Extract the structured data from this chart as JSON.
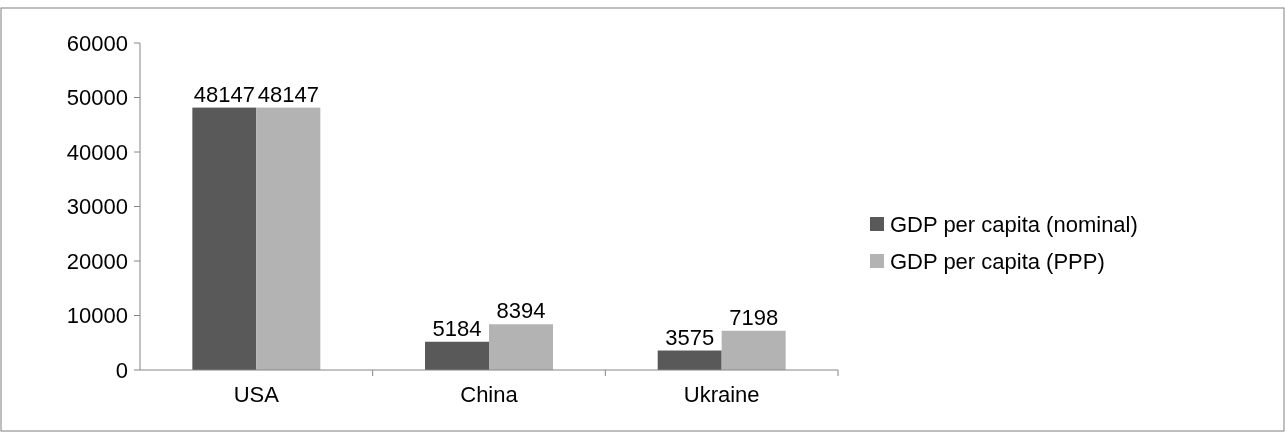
{
  "chart_data": {
    "type": "bar",
    "categories": [
      "USA",
      "China",
      "Ukraine"
    ],
    "series": [
      {
        "name": "GDP per capita (nominal)",
        "color": "#595959",
        "values": [
          48147,
          5184,
          3575
        ]
      },
      {
        "name": "GDP per capita (PPP)",
        "color": "#b3b3b3",
        "values": [
          48147,
          8394,
          7198
        ]
      }
    ],
    "ylim": [
      0,
      60000
    ],
    "yticks": [
      0,
      10000,
      20000,
      30000,
      40000,
      50000,
      60000
    ],
    "data_labels": true,
    "legend": "right",
    "grid": false
  }
}
